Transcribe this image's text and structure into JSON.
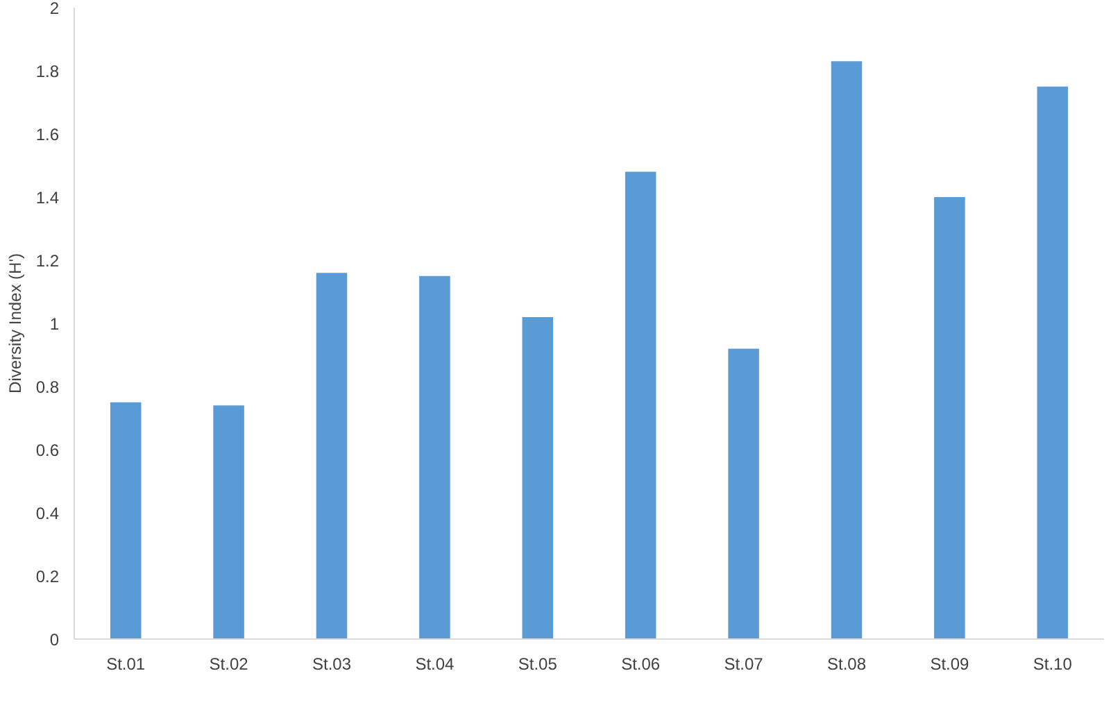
{
  "chart_data": {
    "type": "bar",
    "ylabel": "Diversity Index (H')",
    "categories": [
      "St.01",
      "St.02",
      "St.03",
      "St.04",
      "St.05",
      "St.06",
      "St.07",
      "St.08",
      "St.09",
      "St.10"
    ],
    "values": [
      0.75,
      0.74,
      1.16,
      1.15,
      1.02,
      1.48,
      0.92,
      1.83,
      1.4,
      1.75
    ],
    "color": "#5b9bd5",
    "ylim": [
      0,
      2
    ],
    "yticks": [
      0,
      {
        "value": 0.2,
        "label": "0.2"
      },
      {
        "value": 0.4,
        "label": "0.4"
      },
      {
        "value": 0.6,
        "label": "0.6"
      },
      {
        "value": 0.8,
        "label": "0.8"
      },
      1,
      {
        "value": 1.2,
        "label": "1.2"
      },
      {
        "value": 1.4,
        "label": "1.4"
      },
      {
        "value": 1.6,
        "label": "1.6"
      },
      {
        "value": 1.8,
        "label": "1.8"
      },
      2
    ],
    "grid": false
  }
}
